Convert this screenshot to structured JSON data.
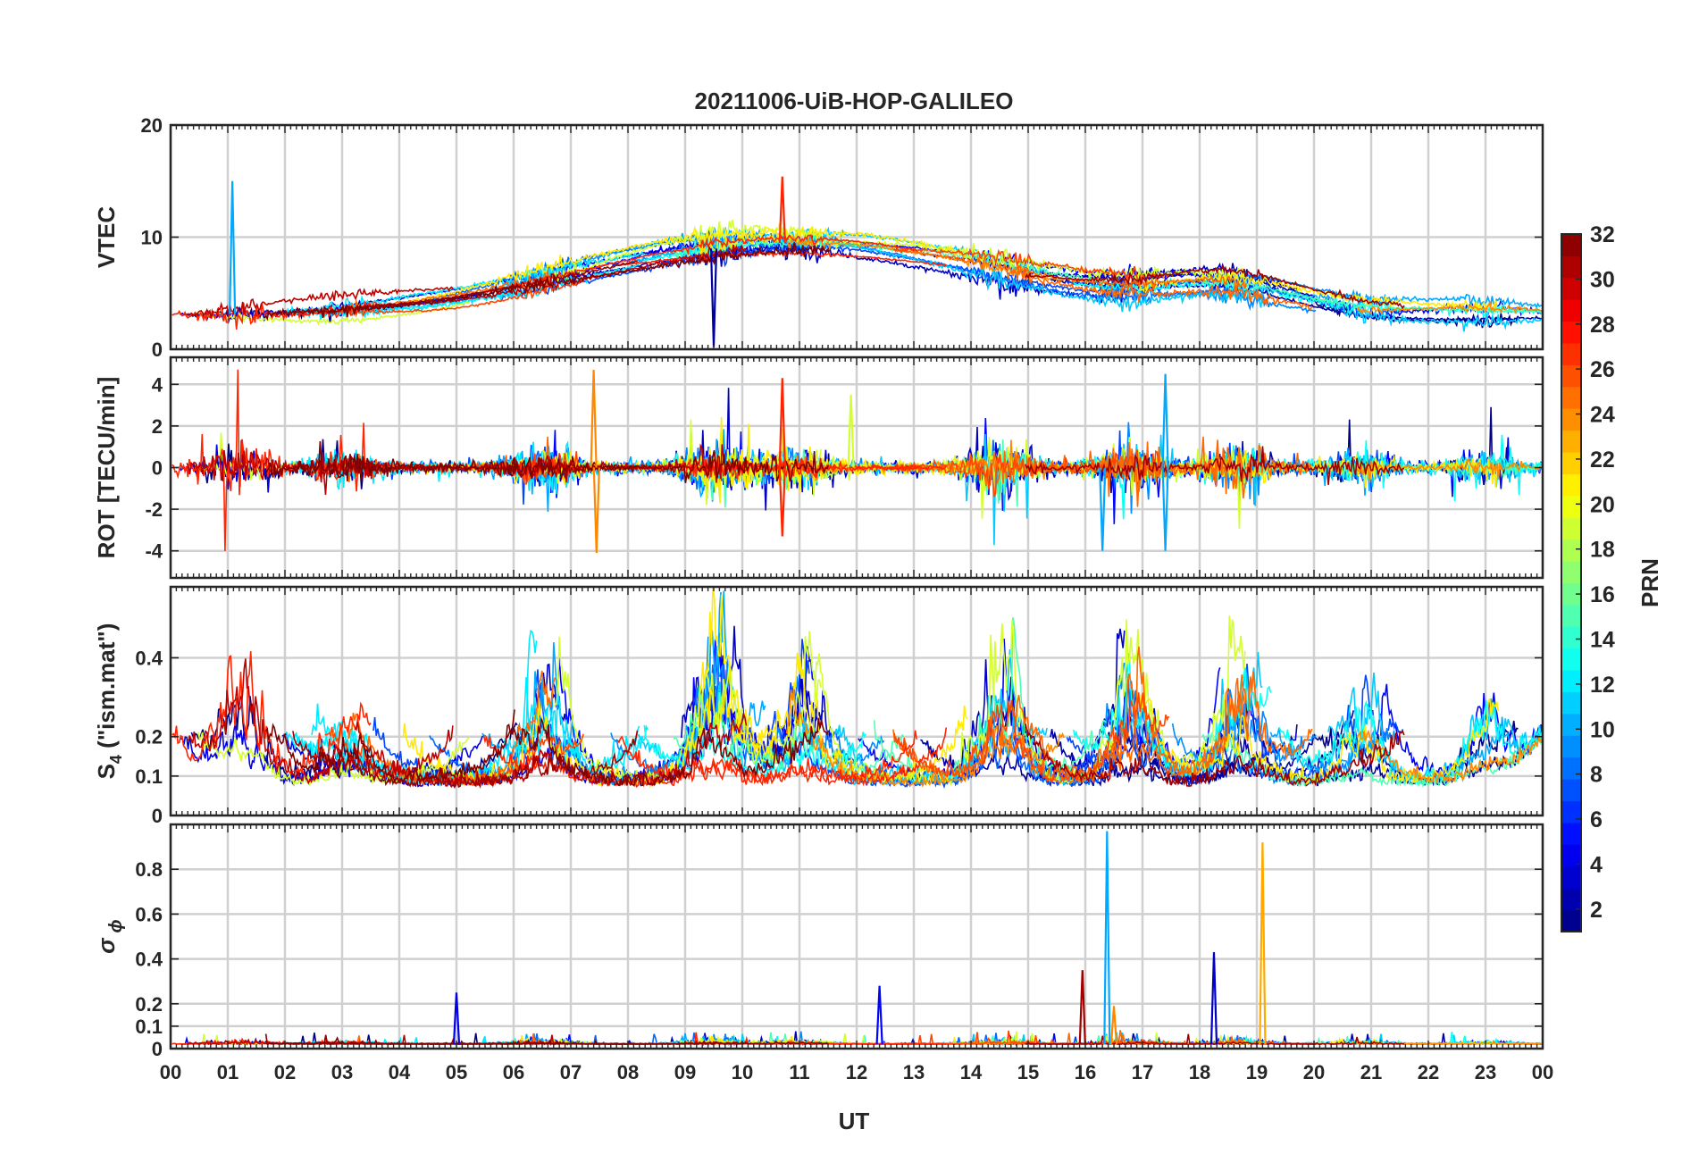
{
  "chart_data": {
    "type": "line",
    "title": "20211006-UiB-HOP-GALILEO",
    "xlabel": "UT",
    "x_tick_labels": [
      "00",
      "01",
      "02",
      "03",
      "04",
      "05",
      "06",
      "07",
      "08",
      "09",
      "10",
      "11",
      "12",
      "13",
      "14",
      "15",
      "16",
      "17",
      "18",
      "19",
      "20",
      "21",
      "22",
      "23",
      "00"
    ],
    "xlim": [
      0,
      24
    ],
    "grid": true,
    "colorbar": {
      "label": "PRN",
      "colormap": "jet",
      "range": [
        1,
        32
      ],
      "tick_labels": [
        "2",
        "4",
        "6",
        "8",
        "10",
        "12",
        "14",
        "16",
        "18",
        "20",
        "22",
        "24",
        "26",
        "28",
        "30",
        "32"
      ],
      "tick_values": [
        2,
        4,
        6,
        8,
        10,
        12,
        14,
        16,
        18,
        20,
        22,
        24,
        26,
        28,
        30,
        32
      ]
    },
    "prns": [
      1,
      2,
      3,
      4,
      5,
      7,
      8,
      9,
      10,
      11,
      12,
      13,
      15,
      19,
      21,
      24,
      25,
      26,
      27,
      30,
      31,
      33
    ],
    "panels": [
      {
        "id": "vtec",
        "ylabel": "VTEC",
        "ylim": [
          0,
          20
        ],
        "y_ticks": [
          0,
          10,
          20
        ],
        "y_tick_labels": [
          "0",
          "10",
          "20"
        ],
        "kind": "vtec",
        "notes": "Smooth daily TEC curve ~3 TECU at night, ~8-11 TECU midday; short dropouts near 09.5 UT and 15 UT; spike to ~15 near 01 UT"
      },
      {
        "id": "rot",
        "ylabel": "ROT [TECU/min]",
        "ylim": [
          -5.3,
          5.3
        ],
        "y_ticks": [
          -4,
          -2,
          0,
          2,
          4
        ],
        "y_tick_labels": [
          "-4",
          "-2",
          "0",
          "2",
          "4"
        ],
        "kind": "rot",
        "notes": "Rate of TEC change mostly within ±1, peaks to ±4 around 07.4, 10.7, 16.3, 17.4 UT"
      },
      {
        "id": "s4",
        "ylabel_main": "S",
        "ylabel_sub": "4",
        "ylabel_rest": " (\"ism.mat\")",
        "ylim": [
          0,
          0.58
        ],
        "y_ticks": [
          0,
          0.1,
          0.2,
          0.4
        ],
        "y_tick_labels": [
          "0",
          "0.1",
          "0.2",
          "0.4"
        ],
        "kind": "s4",
        "notes": "Baseline ~0.06-0.1 with frequent bursts to 0.3-0.58 in 00-03, 06-07, 09-11, 14-15, 17-19, 20-21, 23 UT"
      },
      {
        "id": "sigma_phi",
        "ylabel_main": "σ",
        "ylabel_sub": "ϕ",
        "ylim": [
          0,
          1.0
        ],
        "y_ticks": [
          0,
          0.1,
          0.2,
          0.4,
          0.6,
          0.8
        ],
        "y_tick_labels": [
          "0",
          "0.1",
          "0.2",
          "0.4",
          "0.6",
          "0.8"
        ],
        "kind": "sigma",
        "notes": "Baseline ~0.02; spikes: 16.38 UT ~0.97 (PRN 10), 19.1 UT ~0.92 (PRN 23), 18.25 UT ~0.43 (PRN 3), 15.95 UT ~0.35 (PRN 31), 12.4 UT ~0.28, 05 UT ~0.25"
      }
    ],
    "spikes": {
      "vtec": [
        {
          "x": 1.08,
          "y": 15.0,
          "prn": 10
        },
        {
          "x": 10.7,
          "y": 15.4,
          "prn": 27
        },
        {
          "x": 9.5,
          "y": 0.2,
          "prn": 2
        }
      ],
      "rot": [
        {
          "x": 7.4,
          "y": 4.7,
          "prn": 24
        },
        {
          "x": 7.45,
          "y": -4.1,
          "prn": 24
        },
        {
          "x": 10.7,
          "y": 4.3,
          "prn": 27
        },
        {
          "x": 10.7,
          "y": -3.3,
          "prn": 27
        },
        {
          "x": 16.3,
          "y": -4.0,
          "prn": 10
        },
        {
          "x": 17.4,
          "y": 4.5,
          "prn": 10
        },
        {
          "x": 17.4,
          "y": -4.0,
          "prn": 10
        },
        {
          "x": 11.9,
          "y": 3.5,
          "prn": 19
        }
      ],
      "sigma_phi": [
        {
          "x": 16.38,
          "y": 0.97,
          "prn": 10
        },
        {
          "x": 19.1,
          "y": 0.92,
          "prn": 23
        },
        {
          "x": 18.25,
          "y": 0.43,
          "prn": 3
        },
        {
          "x": 15.95,
          "y": 0.35,
          "prn": 31
        },
        {
          "x": 12.4,
          "y": 0.28,
          "prn": 5
        },
        {
          "x": 5.0,
          "y": 0.25,
          "prn": 4
        },
        {
          "x": 16.5,
          "y": 0.19,
          "prn": 24
        }
      ]
    }
  }
}
